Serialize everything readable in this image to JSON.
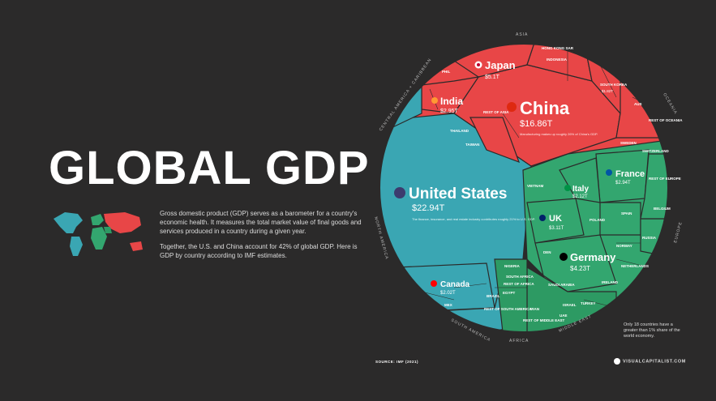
{
  "title": {
    "main": "GLOBAL GDP",
    "year": "2021"
  },
  "intro": {
    "paragraph1": "Gross domestic product (GDP) serves as a barometer for a country's economic health. It measures the total market value of final goods and services produced in a country during a given year.",
    "paragraph2": "Together, the U.S. and China account for 42% of global GDP. Here is GDP by country according to IMF estimates."
  },
  "regions": {
    "asia": "ASIA",
    "oceania": "OCEANIA",
    "europe": "EUROPE",
    "middle_east": "MIDDLE EAST",
    "africa": "AFRICA",
    "south_america": "SOUTH AMERICA",
    "north_america": "NORTH AMERICA",
    "central_america": "CENTRAL AMERICA + CARIBBEAN"
  },
  "countries": {
    "china": {
      "name": "China",
      "value": "$16.86T",
      "note": "Manufacturing makes up roughly 26% of China's GDP."
    },
    "us": {
      "name": "United States",
      "value": "$22.94T",
      "note": "The finance, insurance, and real estate industry contributes roughly 21% to U.S. GDP."
    },
    "japan": {
      "name": "Japan",
      "value": "$5.1T"
    },
    "india": {
      "name": "India",
      "value": "$2.95T"
    },
    "germany": {
      "name": "Germany",
      "value": "$4.23T"
    },
    "uk": {
      "name": "UK",
      "value": "$3.11T"
    },
    "france": {
      "name": "France",
      "value": "$2.94T"
    },
    "italy": {
      "name": "Italy",
      "value": "$2.12T"
    },
    "canada": {
      "name": "Canada",
      "value": "$2.02T"
    },
    "indonesia": {
      "name": "INDONESIA",
      "value": ""
    },
    "south_korea": {
      "name": "SOUTH KOREA",
      "value": "$1.82T"
    },
    "spain": {
      "name": "SPAIN",
      "value": ""
    },
    "russia": {
      "name": "RUSSIA",
      "value": ""
    },
    "netherlands": {
      "name": "NETHERLANDS",
      "value": ""
    },
    "switzerland": {
      "name": "SWITZERLAND",
      "value": ""
    },
    "sweden": {
      "name": "SWEDEN",
      "value": ""
    },
    "poland": {
      "name": "POLAND",
      "value": ""
    },
    "belgium": {
      "name": "BELGIUM",
      "value": ""
    },
    "norway": {
      "name": "NORWAY",
      "value": ""
    },
    "ireland": {
      "name": "IRELAND",
      "value": ""
    },
    "denmark": {
      "name": "DEN",
      "value": ""
    },
    "turkey": {
      "name": "TURKEY",
      "value": ""
    },
    "saudi_arabia": {
      "name": "SAUDI ARABIA",
      "value": ""
    },
    "iran": {
      "name": "IRAN",
      "value": ""
    },
    "israel": {
      "name": "ISRAEL",
      "value": ""
    },
    "uae": {
      "name": "UAE",
      "value": ""
    },
    "brazil": {
      "name": "BRAZIL",
      "value": ""
    },
    "mexico": {
      "name": "MEX",
      "value": ""
    },
    "south_africa": {
      "name": "SOUTH AFRICA",
      "value": ""
    },
    "egypt": {
      "name": "EGYPT",
      "value": ""
    },
    "nigeria": {
      "name": "NIGERIA",
      "value": ""
    },
    "australia": {
      "name": "AUS",
      "value": ""
    },
    "thailand": {
      "name": "THAILAND",
      "value": ""
    },
    "taiwan": {
      "name": "TAIWAN",
      "value": ""
    },
    "hong_kong": {
      "name": "HONG KONG SAR",
      "value": ""
    },
    "vietnam": {
      "name": "VIETNAM",
      "value": ""
    },
    "philippines": {
      "name": "PHIL",
      "value": ""
    },
    "rest_of_asia": {
      "name": "REST OF ASIA",
      "value": ""
    },
    "rest_of_oceania": {
      "name": "REST OF OCEANIA",
      "value": ""
    },
    "rest_of_europe": {
      "name": "REST OF EUROPE",
      "value": ""
    },
    "rest_of_africa": {
      "name": "REST OF AFRICA",
      "value": ""
    },
    "rest_of_middle_east": {
      "name": "REST OF MIDDLE EAST",
      "value": ""
    },
    "rest_of_south_america": {
      "name": "REST OF SOUTH AMERICA",
      "value": ""
    }
  },
  "note": "Only 18 countries have a greater than 1% share of the world economy.",
  "footer": {
    "source_label": "SOURCE: IMF (2021)",
    "brand": "VISUALCAPITALIST.COM"
  },
  "colors": {
    "asia": "#e84647",
    "north_america": "#3aa6b3",
    "europe": "#33a66f",
    "middle_east": "#2d9a63",
    "background": "#2b2a2a"
  }
}
